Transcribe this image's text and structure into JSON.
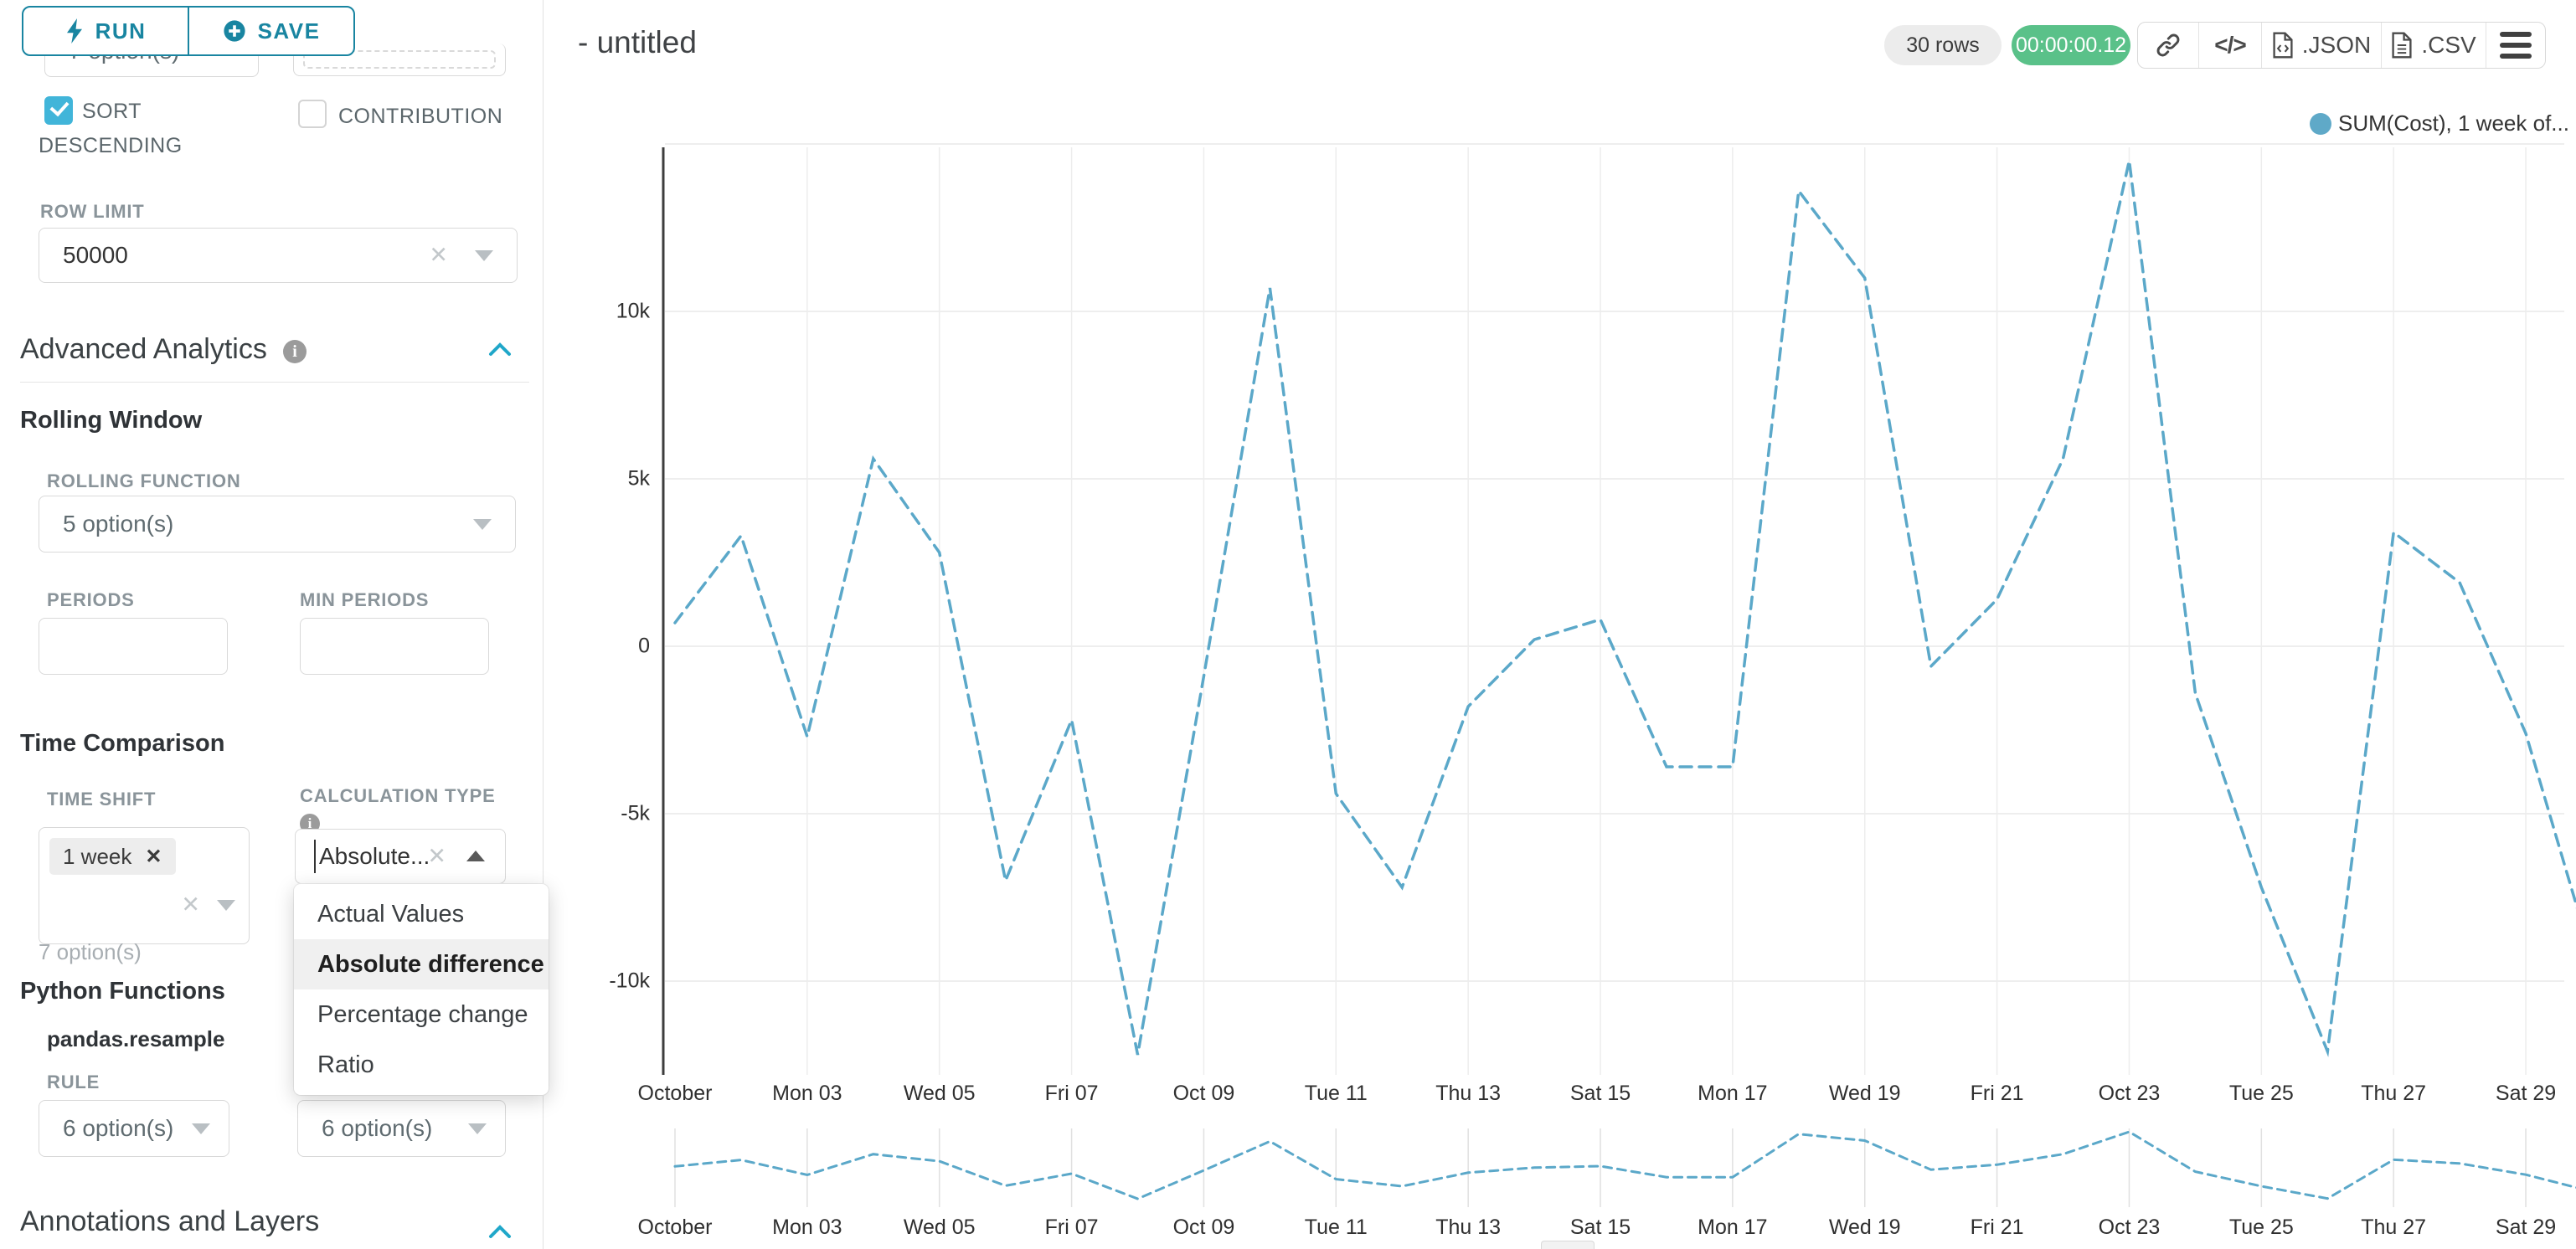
{
  "sidebar": {
    "run_label": "RUN",
    "save_label": "SAVE",
    "top_select_value": "7 option(s)",
    "sort_descending_label": "SORT DESCENDING",
    "contribution_label": "CONTRIBUTION",
    "row_limit_label": "ROW LIMIT",
    "row_limit_value": "50000",
    "advanced_analytics_title": "Advanced Analytics",
    "rolling_window_title": "Rolling Window",
    "rolling_function_label": "ROLLING FUNCTION",
    "rolling_function_value": "5 option(s)",
    "periods_label": "PERIODS",
    "min_periods_label": "MIN PERIODS",
    "time_comparison_title": "Time Comparison",
    "time_shift_label": "TIME SHIFT",
    "time_shift_tag": "1 week",
    "time_shift_hint": "7 option(s)",
    "calculation_type_label": "CALCULATION TYPE",
    "calculation_type_value": "Absolute...",
    "dropdown": {
      "items": [
        "Actual Values",
        "Absolute difference",
        "Percentage change",
        "Ratio"
      ],
      "selected_index": 1
    },
    "python_functions_title": "Python Functions",
    "pandas_resample_label": "pandas.resample",
    "rule_label": "RULE",
    "rule_value_left": "6 option(s)",
    "rule_value_right": "6 option(s)",
    "annotations_title": "Annotations and Layers"
  },
  "header": {
    "title": "- untitled",
    "rows_badge": "30 rows",
    "timer_badge": "00:00:00.12",
    "code_glyph": "</>",
    "json_label": ".JSON",
    "csv_label": ".CSV"
  },
  "chart_data": {
    "type": "line",
    "title": "",
    "line_style": "dashed",
    "line_color": "#5ba8c9",
    "grid": true,
    "legend_position": "top-right",
    "legend": [
      {
        "label": "SUM(Cost), 1 week of...",
        "color": "#5fa9c8"
      }
    ],
    "x_labels": [
      "October",
      "Mon 03",
      "Wed 05",
      "Fri 07",
      "Oct 09",
      "Tue 11",
      "Thu 13",
      "Sat 15",
      "Mon 17",
      "Wed 19",
      "Fri 21",
      "Oct 23",
      "Tue 25",
      "Thu 27",
      "Sat 29"
    ],
    "y_ticks": [
      "10k",
      "5k",
      "0",
      "-5k",
      "-10k"
    ],
    "y_tick_values": [
      10000,
      5000,
      0,
      -5000,
      -10000
    ],
    "ylim": [
      -12750,
      15000
    ],
    "series": [
      {
        "name": "SUM(Cost), 1 week offset (absolute difference)",
        "x": [
          "Oct 01",
          "Oct 02",
          "Oct 03",
          "Oct 04",
          "Oct 05",
          "Oct 06",
          "Oct 07",
          "Oct 08",
          "Oct 09",
          "Oct 10",
          "Oct 11",
          "Oct 12",
          "Oct 13",
          "Oct 14",
          "Oct 15",
          "Oct 16",
          "Oct 17",
          "Oct 18",
          "Oct 19",
          "Oct 20",
          "Oct 21",
          "Oct 22",
          "Oct 23",
          "Oct 24",
          "Oct 25",
          "Oct 26",
          "Oct 27",
          "Oct 28",
          "Oct 29",
          "Oct 30"
        ],
        "values": [
          700,
          3300,
          -2700,
          5600,
          2800,
          -7000,
          -2200,
          -12200,
          -900,
          10700,
          -4400,
          -7200,
          -1800,
          200,
          800,
          -3600,
          -3600,
          13600,
          11000,
          -600,
          1400,
          5600,
          14500,
          -1400,
          -7200,
          -12100,
          3400,
          1900,
          -2600,
          -9300
        ]
      }
    ],
    "mini_map": true
  }
}
